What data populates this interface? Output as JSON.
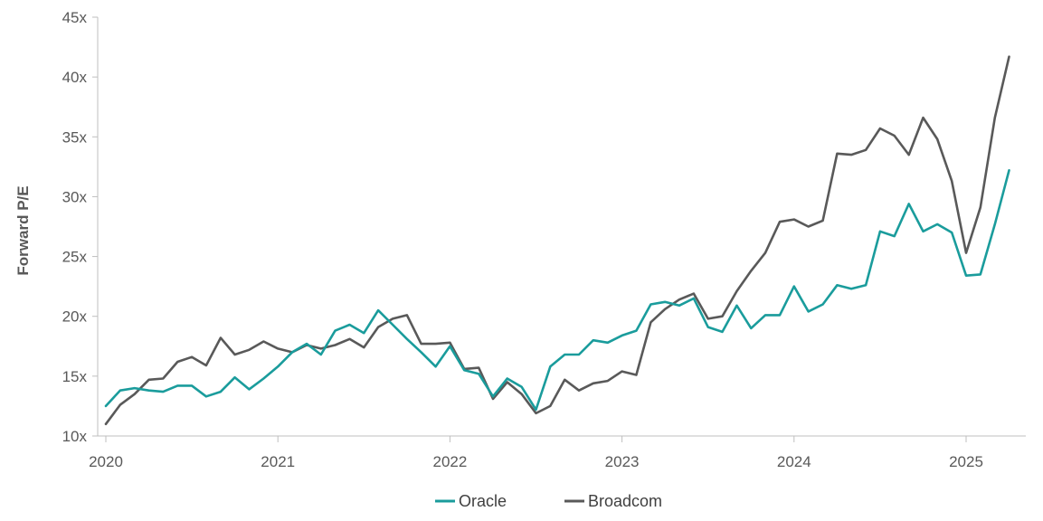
{
  "chart_data": {
    "type": "line",
    "title": "",
    "xlabel": "",
    "ylabel": "Forward P/E",
    "ylim": [
      10,
      45
    ],
    "yticks": [
      10,
      15,
      20,
      25,
      30,
      35,
      40,
      45
    ],
    "ytick_labels": [
      "10x",
      "15x",
      "20x",
      "25x",
      "30x",
      "35x",
      "40x",
      "45x"
    ],
    "xlim": [
      2020.0,
      2025.35
    ],
    "xticks": [
      2020,
      2021,
      2022,
      2023,
      2024,
      2025
    ],
    "xtick_labels": [
      "2020",
      "2021",
      "2022",
      "2023",
      "2024",
      "2025"
    ],
    "grid": false,
    "legend_position": "bottom-center",
    "x": [
      2020.0,
      2020.083,
      2020.167,
      2020.25,
      2020.333,
      2020.417,
      2020.5,
      2020.583,
      2020.667,
      2020.75,
      2020.833,
      2020.917,
      2021.0,
      2021.083,
      2021.167,
      2021.25,
      2021.333,
      2021.417,
      2021.5,
      2021.583,
      2021.667,
      2021.75,
      2021.833,
      2021.917,
      2022.0,
      2022.083,
      2022.167,
      2022.25,
      2022.333,
      2022.417,
      2022.5,
      2022.583,
      2022.667,
      2022.75,
      2022.833,
      2022.917,
      2023.0,
      2023.083,
      2023.167,
      2023.25,
      2023.333,
      2023.417,
      2023.5,
      2023.583,
      2023.667,
      2023.75,
      2023.833,
      2023.917,
      2024.0,
      2024.083,
      2024.167,
      2024.25,
      2024.333,
      2024.417,
      2024.5,
      2024.583,
      2024.667,
      2024.75,
      2024.833,
      2024.917,
      2025.0,
      2025.083,
      2025.167,
      2025.25
    ],
    "series": [
      {
        "name": "Oracle",
        "color": "#1a9c9c",
        "values": [
          12.5,
          13.8,
          14.0,
          13.8,
          13.7,
          14.2,
          14.2,
          13.3,
          13.7,
          14.9,
          13.9,
          14.8,
          15.8,
          17.0,
          17.7,
          16.8,
          18.8,
          19.3,
          18.6,
          20.5,
          19.3,
          18.1,
          17.0,
          15.8,
          17.5,
          15.5,
          15.2,
          13.3,
          14.8,
          14.1,
          12.2,
          15.8,
          16.8,
          16.8,
          18.0,
          17.8,
          18.4,
          18.8,
          21.0,
          21.2,
          20.9,
          21.5,
          19.1,
          18.7,
          20.9,
          19.0,
          20.1,
          20.1,
          22.5,
          20.4,
          21.0,
          22.6,
          22.3,
          22.6,
          27.1,
          26.7,
          29.4,
          27.1,
          27.7,
          27.0,
          23.4,
          23.5,
          27.7,
          32.2
        ]
      },
      {
        "name": "Broadcom",
        "color": "#595959",
        "values": [
          11.0,
          12.6,
          13.5,
          14.7,
          14.8,
          16.2,
          16.6,
          15.9,
          18.2,
          16.8,
          17.2,
          17.9,
          17.3,
          17.0,
          17.6,
          17.3,
          17.6,
          18.1,
          17.4,
          19.1,
          19.8,
          20.1,
          17.7,
          17.7,
          17.8,
          15.6,
          15.7,
          13.1,
          14.5,
          13.5,
          11.9,
          12.5,
          14.7,
          13.8,
          14.4,
          14.6,
          15.4,
          15.1,
          19.5,
          20.6,
          21.4,
          21.9,
          19.8,
          20.0,
          22.1,
          23.8,
          25.3,
          27.9,
          28.1,
          27.5,
          28.0,
          33.6,
          33.5,
          33.9,
          35.7,
          35.1,
          33.5,
          36.6,
          34.8,
          31.3,
          25.3,
          29.1,
          36.6,
          41.7
        ]
      }
    ]
  }
}
